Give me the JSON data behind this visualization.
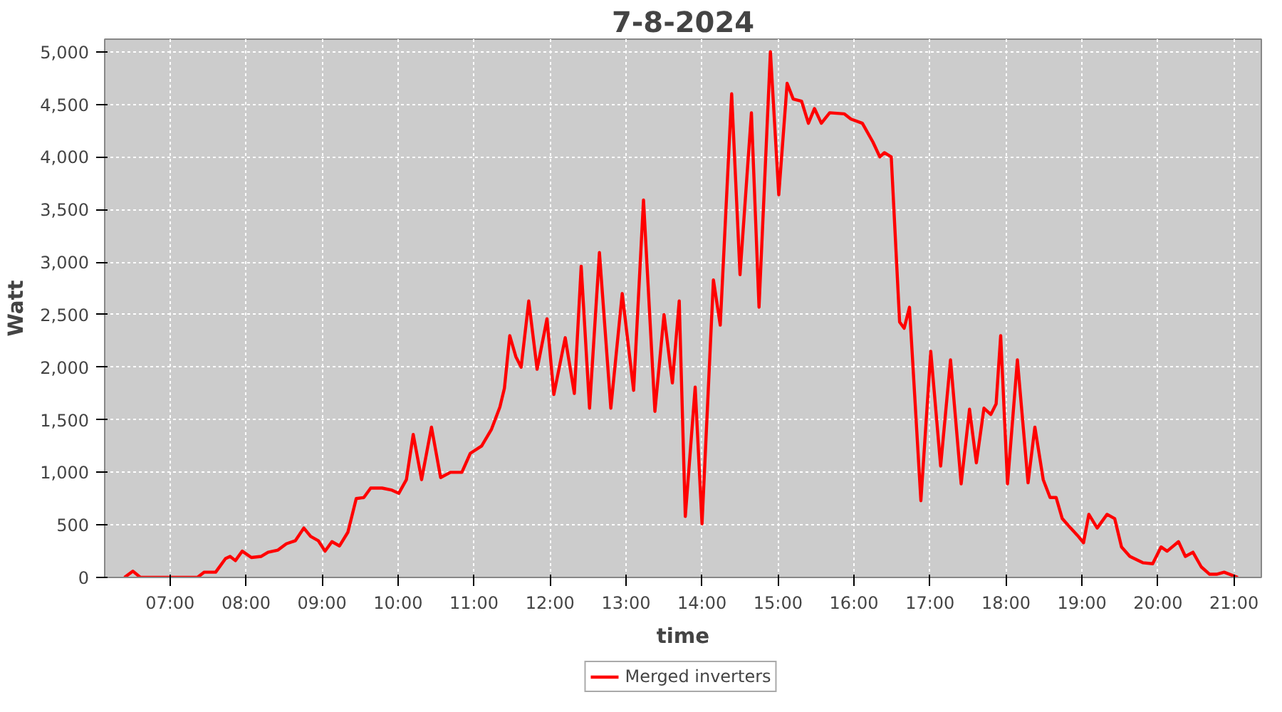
{
  "chart_data": {
    "type": "line",
    "title": "7-8-2024",
    "xlabel": "time",
    "ylabel": "Watt",
    "x": [
      6.4,
      6.51,
      6.61,
      7.36,
      7.45,
      7.6,
      7.73,
      7.79,
      7.86,
      7.95,
      8.07,
      8.2,
      8.29,
      8.42,
      8.53,
      8.65,
      8.76,
      8.85,
      8.95,
      9.04,
      9.13,
      9.23,
      9.34,
      9.45,
      9.55,
      9.64,
      9.79,
      9.92,
      10.01,
      10.11,
      10.2,
      10.31,
      10.44,
      10.56,
      10.69,
      10.84,
      10.95,
      11.1,
      11.23,
      11.34,
      11.4,
      11.47,
      11.55,
      11.62,
      11.72,
      11.83,
      11.96,
      12.05,
      12.2,
      12.32,
      12.41,
      12.52,
      12.65,
      12.8,
      12.95,
      13.1,
      13.23,
      13.38,
      13.5,
      13.61,
      13.7,
      13.78,
      13.91,
      14.0,
      14.15,
      14.24,
      14.39,
      14.5,
      14.65,
      14.75,
      14.9,
      15.01,
      15.12,
      15.2,
      15.31,
      15.4,
      15.48,
      15.57,
      15.68,
      15.87,
      15.96,
      16.11,
      16.25,
      16.34,
      16.4,
      16.49,
      16.6,
      16.66,
      16.73,
      16.88,
      17.01,
      17.14,
      17.27,
      17.41,
      17.52,
      17.61,
      17.71,
      17.8,
      17.87,
      17.93,
      18.02,
      18.15,
      18.29,
      18.38,
      18.49,
      18.58,
      18.66,
      18.74,
      18.85,
      18.94,
      19.02,
      19.09,
      19.2,
      19.33,
      19.43,
      19.52,
      19.63,
      19.8,
      19.93,
      20.04,
      20.12,
      20.27,
      20.36,
      20.46,
      20.57,
      20.68,
      20.77,
      20.87,
      21.05
    ],
    "series": [
      {
        "name": "Merged inverters",
        "color": "#ff0000",
        "values": [
          0,
          60,
          0,
          0,
          50,
          50,
          180,
          200,
          160,
          250,
          190,
          200,
          240,
          260,
          320,
          350,
          470,
          390,
          350,
          250,
          340,
          300,
          430,
          750,
          760,
          850,
          850,
          830,
          800,
          930,
          1360,
          930,
          1430,
          950,
          1000,
          1000,
          1180,
          1250,
          1410,
          1620,
          1800,
          2300,
          2100,
          2000,
          2630,
          1980,
          2460,
          1740,
          2280,
          1750,
          2960,
          1610,
          3090,
          1610,
          2700,
          1780,
          3590,
          1580,
          2500,
          1850,
          2630,
          580,
          1810,
          510,
          2830,
          2400,
          4600,
          2880,
          4420,
          2570,
          5000,
          3640,
          4700,
          4550,
          4530,
          4320,
          4460,
          4320,
          4420,
          4410,
          4360,
          4320,
          4140,
          4000,
          4040,
          4000,
          2430,
          2370,
          2570,
          730,
          2150,
          1060,
          2070,
          890,
          1600,
          1090,
          1610,
          1550,
          1650,
          2300,
          890,
          2070,
          900,
          1430,
          930,
          760,
          760,
          560,
          470,
          400,
          330,
          600,
          470,
          600,
          560,
          290,
          200,
          140,
          130,
          290,
          250,
          340,
          200,
          240,
          100,
          30,
          30,
          50,
          0
        ]
      }
    ],
    "xlim": [
      6.14,
      21.36
    ],
    "xticks": [
      {
        "value": 7,
        "label": "07:00"
      },
      {
        "value": 8,
        "label": "08:00"
      },
      {
        "value": 9,
        "label": "09:00"
      },
      {
        "value": 10,
        "label": "10:00"
      },
      {
        "value": 11,
        "label": "11:00"
      },
      {
        "value": 12,
        "label": "12:00"
      },
      {
        "value": 13,
        "label": "13:00"
      },
      {
        "value": 14,
        "label": "14:00"
      },
      {
        "value": 15,
        "label": "15:00"
      },
      {
        "value": 16,
        "label": "16:00"
      },
      {
        "value": 17,
        "label": "17:00"
      },
      {
        "value": 18,
        "label": "18:00"
      },
      {
        "value": 19,
        "label": "19:00"
      },
      {
        "value": 20,
        "label": "20:00"
      },
      {
        "value": 21,
        "label": "21:00"
      }
    ],
    "ylim": [
      0,
      5120
    ],
    "yticks": [
      0,
      500,
      {
        "value": 1000,
        "label": "1,000"
      },
      {
        "value": 1500,
        "label": "1,500"
      },
      {
        "value": 2000,
        "label": "2,000"
      },
      {
        "value": 2500,
        "label": "2,500"
      },
      {
        "value": 3000,
        "label": "3,000"
      },
      {
        "value": 3500,
        "label": "3,500"
      },
      {
        "value": 4000,
        "label": "4,000"
      },
      {
        "value": 4500,
        "label": "4,500"
      },
      {
        "value": 5000,
        "label": "5,000"
      }
    ],
    "grid": true,
    "legend": "bottom",
    "marker": "none",
    "line_style": "solid"
  }
}
